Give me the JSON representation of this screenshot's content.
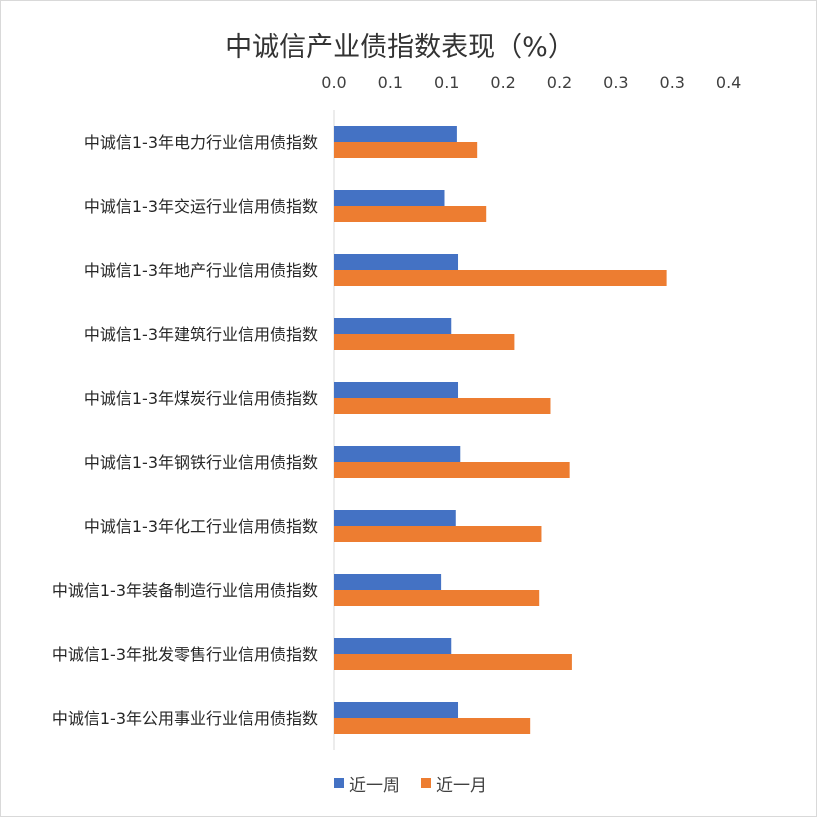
{
  "chart_data": {
    "type": "bar",
    "orientation": "horizontal",
    "title": "中诚信产业债指数表现（%）",
    "xlabel": "",
    "ylabel": "",
    "xlim": [
      0,
      0.4
    ],
    "x_ticks": [
      "0.0",
      "0.1",
      "0.1",
      "0.2",
      "0.2",
      "0.3",
      "0.3",
      "0.4"
    ],
    "x_tick_values": [
      0.0,
      0.05,
      0.1,
      0.15,
      0.2,
      0.25,
      0.3,
      0.35
    ],
    "x_axis_position": "top",
    "grid": false,
    "legend_position": "bottom",
    "categories": [
      "中诚信1-3年电力行业信用债指数",
      "中诚信1-3年交运行业信用债指数",
      "中诚信1-3年地产行业信用债指数",
      "中诚信1-3年建筑行业信用债指数",
      "中诚信1-3年煤炭行业信用债指数",
      "中诚信1-3年钢铁行业信用债指数",
      "中诚信1-3年化工行业信用债指数",
      "中诚信1-3年装备制造行业信用债指数",
      "中诚信1-3年批发零售行业信用债指数",
      "中诚信1-3年公用事业行业信用债指数"
    ],
    "series": [
      {
        "name": "近一周",
        "color": "#4472c4",
        "values": [
          0.109,
          0.098,
          0.11,
          0.104,
          0.11,
          0.112,
          0.108,
          0.095,
          0.104,
          0.11
        ]
      },
      {
        "name": "近一月",
        "color": "#ed7d31",
        "values": [
          0.127,
          0.135,
          0.295,
          0.16,
          0.192,
          0.209,
          0.184,
          0.182,
          0.211,
          0.174
        ]
      }
    ]
  }
}
